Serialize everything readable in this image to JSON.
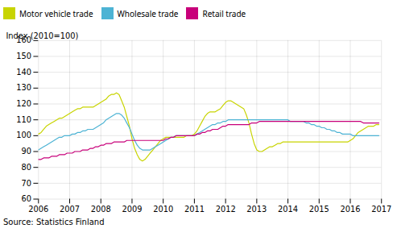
{
  "chart_data": {
    "type": "line",
    "ylabel": "Index (2010=100)",
    "caption": "Source: Statistics Finland",
    "xlim": [
      2006.0,
      2017.0
    ],
    "ylim": [
      60,
      160
    ],
    "xticks": [
      2006,
      2007,
      2008,
      2009,
      2010,
      2011,
      2012,
      2013,
      2014,
      2015,
      2016,
      2017
    ],
    "yticks": [
      60,
      70,
      80,
      90,
      100,
      110,
      120,
      130,
      140,
      150,
      160
    ],
    "grid": true,
    "legend": "upper left",
    "x": [
      2006.0,
      2006.083,
      2006.167,
      2006.25,
      2006.333,
      2006.417,
      2006.5,
      2006.583,
      2006.667,
      2006.75,
      2006.833,
      2006.917,
      2007.0,
      2007.083,
      2007.167,
      2007.25,
      2007.333,
      2007.417,
      2007.5,
      2007.583,
      2007.667,
      2007.75,
      2007.833,
      2007.917,
      2008.0,
      2008.083,
      2008.167,
      2008.25,
      2008.333,
      2008.417,
      2008.5,
      2008.583,
      2008.667,
      2008.75,
      2008.833,
      2008.917,
      2009.0,
      2009.083,
      2009.167,
      2009.25,
      2009.333,
      2009.417,
      2009.5,
      2009.583,
      2009.667,
      2009.75,
      2009.833,
      2009.917,
      2010.0,
      2010.083,
      2010.167,
      2010.25,
      2010.333,
      2010.417,
      2010.5,
      2010.583,
      2010.667,
      2010.75,
      2010.833,
      2010.917,
      2011.0,
      2011.083,
      2011.167,
      2011.25,
      2011.333,
      2011.417,
      2011.5,
      2011.583,
      2011.667,
      2011.75,
      2011.833,
      2011.917,
      2012.0,
      2012.083,
      2012.167,
      2012.25,
      2012.333,
      2012.417,
      2012.5,
      2012.583,
      2012.667,
      2012.75,
      2012.833,
      2012.917,
      2013.0,
      2013.083,
      2013.167,
      2013.25,
      2013.333,
      2013.417,
      2013.5,
      2013.583,
      2013.667,
      2013.75,
      2013.833,
      2013.917,
      2014.0,
      2014.083,
      2014.167,
      2014.25,
      2014.333,
      2014.417,
      2014.5,
      2014.583,
      2014.667,
      2014.75,
      2014.833,
      2014.917,
      2015.0,
      2015.083,
      2015.167,
      2015.25,
      2015.333,
      2015.417,
      2015.5,
      2015.583,
      2015.667,
      2015.75,
      2015.833,
      2015.917,
      2016.0,
      2016.083,
      2016.167,
      2016.25,
      2016.333,
      2016.417,
      2016.5,
      2016.583,
      2016.667,
      2016.75,
      2016.833,
      2016.917
    ],
    "series": [
      {
        "name": "Motor vehicle trade",
        "color": "#c8d400",
        "values": [
          101,
          102,
          104,
          106,
          107,
          108,
          109,
          110,
          111,
          111,
          112,
          113,
          114,
          115,
          116,
          117,
          117,
          118,
          118,
          118,
          118,
          118,
          119,
          120,
          121,
          122,
          123,
          125,
          126,
          126,
          127,
          126,
          122,
          118,
          112,
          106,
          98,
          92,
          88,
          85,
          84,
          85,
          87,
          89,
          91,
          93,
          95,
          97,
          98,
          99,
          99,
          99,
          99,
          99,
          99,
          99,
          99,
          100,
          100,
          100,
          101,
          103,
          106,
          109,
          112,
          114,
          115,
          115,
          115,
          116,
          117,
          119,
          121,
          122,
          122,
          121,
          120,
          119,
          118,
          117,
          113,
          108,
          101,
          95,
          91,
          90,
          90,
          91,
          92,
          93,
          93,
          94,
          95,
          95,
          96,
          96,
          96,
          96,
          96,
          96,
          96,
          96,
          96,
          96,
          96,
          96,
          96,
          96,
          96,
          96,
          96,
          96,
          96,
          96,
          96,
          96,
          96,
          96,
          96,
          96,
          97,
          98,
          100,
          102,
          103,
          104,
          105,
          106,
          106,
          106,
          107,
          107
        ]
      },
      {
        "name": "Wholesale trade",
        "color": "#4db3d4",
        "values": [
          91,
          92,
          93,
          94,
          95,
          96,
          97,
          98,
          99,
          99,
          100,
          100,
          100,
          101,
          101,
          102,
          102,
          103,
          103,
          104,
          104,
          104,
          105,
          106,
          107,
          108,
          110,
          111,
          112,
          113,
          114,
          114,
          113,
          111,
          108,
          105,
          101,
          97,
          94,
          92,
          91,
          91,
          91,
          91,
          92,
          93,
          94,
          95,
          96,
          97,
          98,
          99,
          99,
          100,
          100,
          100,
          100,
          100,
          100,
          100,
          100,
          101,
          102,
          103,
          104,
          105,
          106,
          107,
          107,
          108,
          108,
          109,
          109,
          110,
          110,
          110,
          110,
          110,
          110,
          110,
          110,
          110,
          110,
          110,
          110,
          110,
          110,
          110,
          110,
          110,
          110,
          110,
          110,
          110,
          110,
          110,
          110,
          109,
          109,
          109,
          109,
          109,
          109,
          108,
          108,
          107,
          107,
          106,
          106,
          105,
          105,
          104,
          104,
          103,
          103,
          102,
          102,
          101,
          101,
          101,
          101,
          100,
          100,
          100,
          100,
          100,
          100,
          100,
          100,
          100,
          100,
          100
        ]
      },
      {
        "name": "Retail trade",
        "color": "#c8007a",
        "values": [
          85,
          85,
          86,
          86,
          86,
          87,
          87,
          87,
          88,
          88,
          88,
          89,
          89,
          89,
          90,
          90,
          90,
          91,
          91,
          91,
          92,
          92,
          93,
          93,
          94,
          94,
          95,
          95,
          95,
          96,
          96,
          96,
          96,
          96,
          97,
          97,
          97,
          97,
          97,
          97,
          97,
          97,
          97,
          97,
          97,
          97,
          97,
          97,
          97,
          98,
          98,
          99,
          99,
          100,
          100,
          100,
          100,
          100,
          100,
          100,
          100,
          101,
          101,
          102,
          102,
          103,
          103,
          104,
          104,
          104,
          105,
          106,
          106,
          107,
          107,
          107,
          107,
          107,
          107,
          107,
          107,
          107,
          108,
          108,
          108,
          109,
          109,
          109,
          109,
          109,
          109,
          109,
          109,
          109,
          109,
          109,
          109,
          109,
          109,
          109,
          109,
          109,
          109,
          109,
          109,
          109,
          109,
          109,
          109,
          109,
          109,
          109,
          109,
          109,
          109,
          109,
          109,
          109,
          109,
          109,
          109,
          109,
          109,
          109,
          109,
          108,
          108,
          108,
          108,
          108,
          108,
          108
        ]
      }
    ]
  }
}
